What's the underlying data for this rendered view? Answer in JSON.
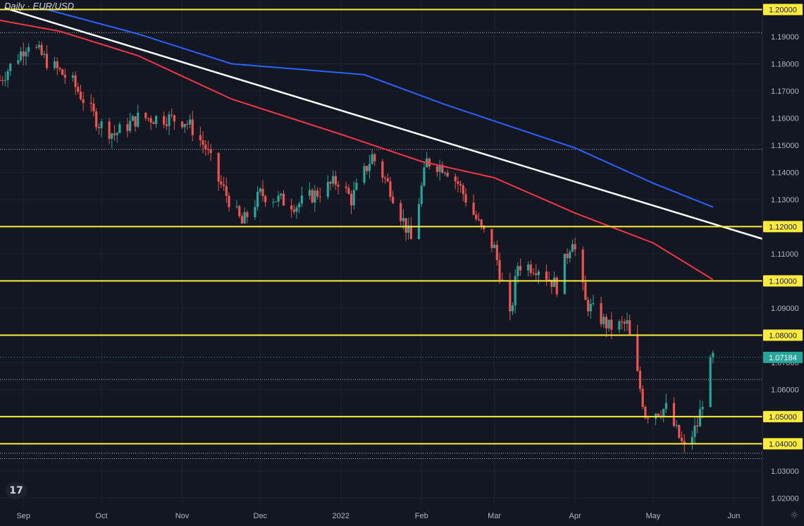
{
  "chart_data": {
    "type": "candlestick",
    "title": "Daily · EUR/USD",
    "xlabel": "",
    "ylabel": "",
    "ylim": [
      1.0175,
      1.2035
    ],
    "y_ticks": [
      "1.20000",
      "1.19000",
      "1.18000",
      "1.17000",
      "1.16000",
      "1.15000",
      "1.14000",
      "1.13000",
      "1.12000",
      "1.11000",
      "1.10000",
      "1.09000",
      "1.08000",
      "1.07000",
      "1.06000",
      "1.05000",
      "1.04000",
      "1.03000",
      "1.02000"
    ],
    "x_ticks": [
      {
        "label": "Sep",
        "date": "2021-09-01"
      },
      {
        "label": "Oct",
        "date": "2021-10-01"
      },
      {
        "label": "Nov",
        "date": "2021-11-01"
      },
      {
        "label": "Dec",
        "date": "2021-12-01"
      },
      {
        "label": "2022",
        "date": "2022-01-01"
      },
      {
        "label": "Feb",
        "date": "2022-02-01"
      },
      {
        "label": "Mar",
        "date": "2022-03-01"
      },
      {
        "label": "Apr",
        "date": "2022-04-01"
      },
      {
        "label": "May",
        "date": "2022-05-01"
      },
      {
        "label": "Jun",
        "date": "2022-06-01"
      }
    ],
    "x_range": [
      "2021-08-23",
      "2022-06-12"
    ],
    "last_price": {
      "label": "1.07184",
      "value": 1.07184,
      "color": "#26a69a"
    },
    "horizontal_levels": [
      {
        "value": 1.2,
        "color": "#ffeb3b",
        "label": "1.20000"
      },
      {
        "value": 1.12,
        "color": "#ffeb3b",
        "label": "1.12000"
      },
      {
        "value": 1.1,
        "color": "#ffeb3b",
        "label": "1.10000"
      },
      {
        "value": 1.08,
        "color": "#ffeb3b",
        "label": "1.08000"
      },
      {
        "value": 1.05,
        "color": "#ffeb3b",
        "label": "1.05000"
      },
      {
        "value": 1.04,
        "color": "#ffeb3b",
        "label": "1.04000"
      }
    ],
    "dotted_levels": [
      1.1915,
      1.1485,
      1.0637,
      1.0365,
      1.0345
    ],
    "trendline": {
      "color": "#ffffff",
      "points": [
        {
          "date": "2021-08-25",
          "value": 1.2005
        },
        {
          "date": "2022-06-12",
          "value": 1.1155
        }
      ]
    },
    "moving_averages": [
      {
        "color": "#2962ff",
        "points": [
          {
            "date": "2021-09-08",
            "value": 1.2005
          },
          {
            "date": "2021-10-15",
            "value": 1.191
          },
          {
            "date": "2021-11-20",
            "value": 1.18
          },
          {
            "date": "2022-01-10",
            "value": 1.176
          },
          {
            "date": "2022-02-10",
            "value": 1.165
          },
          {
            "date": "2022-03-10",
            "value": 1.156
          },
          {
            "date": "2022-04-01",
            "value": 1.149
          },
          {
            "date": "2022-05-01",
            "value": 1.136
          },
          {
            "date": "2022-05-24",
            "value": 1.1272
          }
        ]
      },
      {
        "color": "#f23645",
        "points": [
          {
            "date": "2021-08-23",
            "value": 1.196
          },
          {
            "date": "2021-09-15",
            "value": 1.192
          },
          {
            "date": "2021-10-15",
            "value": 1.183
          },
          {
            "date": "2021-11-20",
            "value": 1.167
          },
          {
            "date": "2022-01-01",
            "value": 1.154
          },
          {
            "date": "2022-02-01",
            "value": 1.144
          },
          {
            "date": "2022-03-01",
            "value": 1.138
          },
          {
            "date": "2022-04-01",
            "value": 1.125
          },
          {
            "date": "2022-05-01",
            "value": 1.114
          },
          {
            "date": "2022-05-24",
            "value": 1.1005
          }
        ]
      }
    ],
    "closes": [
      {
        "date": "2021-08-23",
        "value": 1.174
      },
      {
        "date": "2021-09-03",
        "value": 1.188
      },
      {
        "date": "2021-09-10",
        "value": 1.181
      },
      {
        "date": "2021-09-20",
        "value": 1.173
      },
      {
        "date": "2021-09-30",
        "value": 1.158
      },
      {
        "date": "2021-10-06",
        "value": 1.154
      },
      {
        "date": "2021-10-15",
        "value": 1.16
      },
      {
        "date": "2021-10-26",
        "value": 1.16
      },
      {
        "date": "2021-11-02",
        "value": 1.159
      },
      {
        "date": "2021-11-05",
        "value": 1.156
      },
      {
        "date": "2021-11-10",
        "value": 1.149
      },
      {
        "date": "2021-11-15",
        "value": 1.137
      },
      {
        "date": "2021-11-24",
        "value": 1.121
      },
      {
        "date": "2021-12-01",
        "value": 1.132
      },
      {
        "date": "2021-12-15",
        "value": 1.128
      },
      {
        "date": "2021-12-31",
        "value": 1.137
      },
      {
        "date": "2022-01-05",
        "value": 1.13
      },
      {
        "date": "2022-01-13",
        "value": 1.146
      },
      {
        "date": "2022-01-20",
        "value": 1.134
      },
      {
        "date": "2022-01-28",
        "value": 1.115
      },
      {
        "date": "2022-02-03",
        "value": 1.144
      },
      {
        "date": "2022-02-10",
        "value": 1.142
      },
      {
        "date": "2022-02-15",
        "value": 1.136
      },
      {
        "date": "2022-02-24",
        "value": 1.119
      },
      {
        "date": "2022-03-01",
        "value": 1.112
      },
      {
        "date": "2022-03-07",
        "value": 1.086
      },
      {
        "date": "2022-03-10",
        "value": 1.106
      },
      {
        "date": "2022-03-18",
        "value": 1.105
      },
      {
        "date": "2022-03-25",
        "value": 1.098
      },
      {
        "date": "2022-03-31",
        "value": 1.116
      },
      {
        "date": "2022-04-05",
        "value": 1.092
      },
      {
        "date": "2022-04-14",
        "value": 1.083
      },
      {
        "date": "2022-04-21",
        "value": 1.084
      },
      {
        "date": "2022-04-28",
        "value": 1.051
      },
      {
        "date": "2022-05-06",
        "value": 1.053
      },
      {
        "date": "2022-05-13",
        "value": 1.038
      },
      {
        "date": "2022-05-18",
        "value": 1.047
      },
      {
        "date": "2022-05-20",
        "value": 1.056
      },
      {
        "date": "2022-05-23",
        "value": 1.069
      },
      {
        "date": "2022-05-24",
        "value": 1.0718
      }
    ]
  }
}
